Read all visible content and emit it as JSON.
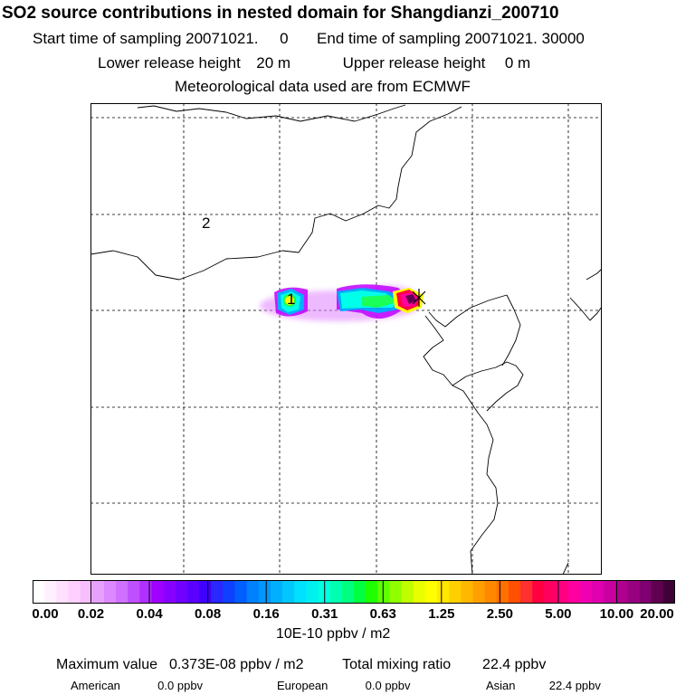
{
  "header": {
    "title": "SO2 source contributions in nested domain for Shangdianzi_200710",
    "start_label": "Start time of sampling",
    "start_value": "20071021.     0",
    "end_label": "End time of sampling",
    "end_value": "20071021. 30000",
    "lower_label": "Lower release height",
    "lower_value": "20 m",
    "upper_label": "Upper release height",
    "upper_value": "0 m",
    "met_note": "Meteorological data used are from ECMWF"
  },
  "map": {
    "region_labels": [
      "1",
      "2"
    ],
    "receptor_marker": "x-marker-icon",
    "plume_colors": [
      "#e080ff",
      "#c000ff",
      "#00a8ff",
      "#00ffe8",
      "#20ff40",
      "#80ff00",
      "#ffff00",
      "#ff0040",
      "#ff00a0",
      "#a00070",
      "#500040"
    ]
  },
  "colorbar": {
    "colors": [
      "#ffffff",
      "#fff0ff",
      "#ffe0ff",
      "#ffd0ff",
      "#f8bfff",
      "#e8a0ff",
      "#dc88ff",
      "#d070ff",
      "#c050ff",
      "#b030ff",
      "#a000ff",
      "#8800ff",
      "#7000ff",
      "#5a00ff",
      "#4000ff",
      "#2828ff",
      "#1040ff",
      "#0060ff",
      "#0080ff",
      "#0098ff",
      "#00b0ff",
      "#00c8ff",
      "#00e0ff",
      "#00f0f0",
      "#00ffe0",
      "#00ffb0",
      "#00ff80",
      "#00ff40",
      "#20ff00",
      "#60ff00",
      "#90ff00",
      "#c0ff00",
      "#e8ff00",
      "#ffff00",
      "#ffe800",
      "#ffd000",
      "#ffb800",
      "#ffa000",
      "#ff8800",
      "#ff7000",
      "#ff5000",
      "#ff3030",
      "#ff0040",
      "#ff0060",
      "#ff0080",
      "#ff00a0",
      "#f000b0",
      "#e000b0",
      "#c800a0",
      "#b00090",
      "#980080",
      "#800070",
      "#600050",
      "#400038"
    ],
    "tick_labels": [
      "0.00",
      "0.02",
      "0.04",
      "0.08",
      "0.16",
      "0.31",
      "0.63",
      "1.25",
      "2.50",
      "5.00",
      "10.00",
      "20.00"
    ],
    "units": "10E-10 ppbv / m2"
  },
  "footer": {
    "max_label": "Maximum value",
    "max_value": "0.373E-08 ppbv / m2",
    "total_label": "Total mixing ratio",
    "total_value": "22.4 ppbv",
    "regions": [
      {
        "name": "American",
        "value": "0.0 ppbv"
      },
      {
        "name": "European",
        "value": "0.0 ppbv"
      },
      {
        "name": "Asian",
        "value": "22.4 ppbv"
      }
    ]
  }
}
